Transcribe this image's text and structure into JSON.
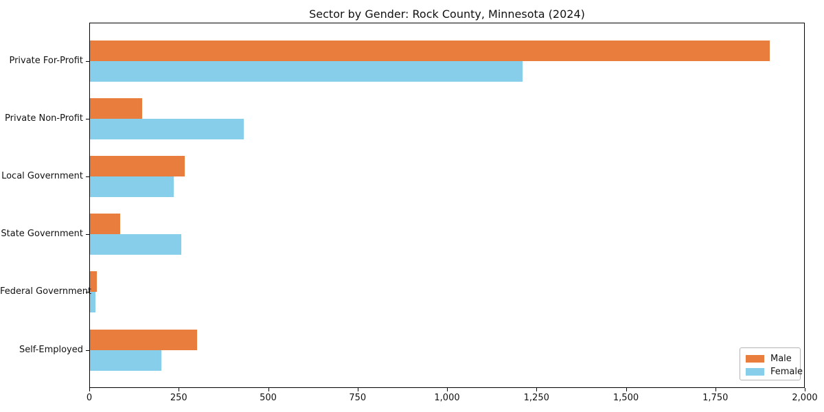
{
  "chart_data": {
    "type": "bar",
    "orientation": "horizontal",
    "title": "Sector by Gender: Rock County, Minnesota (2024)",
    "categories": [
      "Private For-Profit",
      "Private Non-Profit",
      "Local Government",
      "State Government",
      "Federal Government",
      "Self-Employed"
    ],
    "series": [
      {
        "name": "Male",
        "color": "#e87d3d",
        "values": [
          1900,
          145,
          265,
          85,
          20,
          300
        ]
      },
      {
        "name": "Female",
        "color": "#87ceeb",
        "values": [
          1210,
          430,
          235,
          255,
          15,
          200
        ]
      }
    ],
    "xlabel": "",
    "ylabel": "",
    "xlim": [
      0,
      2000
    ],
    "xticks": [
      {
        "value": 0,
        "label": "0"
      },
      {
        "value": 250,
        "label": "250"
      },
      {
        "value": 500,
        "label": "500"
      },
      {
        "value": 750,
        "label": "750"
      },
      {
        "value": 1000,
        "label": "1,000"
      },
      {
        "value": 1250,
        "label": "1,250"
      },
      {
        "value": 1500,
        "label": "1,500"
      },
      {
        "value": 1750,
        "label": "1,750"
      },
      {
        "value": 2000,
        "label": "2,000"
      }
    ],
    "grid": false,
    "legend_position": "lower right"
  }
}
